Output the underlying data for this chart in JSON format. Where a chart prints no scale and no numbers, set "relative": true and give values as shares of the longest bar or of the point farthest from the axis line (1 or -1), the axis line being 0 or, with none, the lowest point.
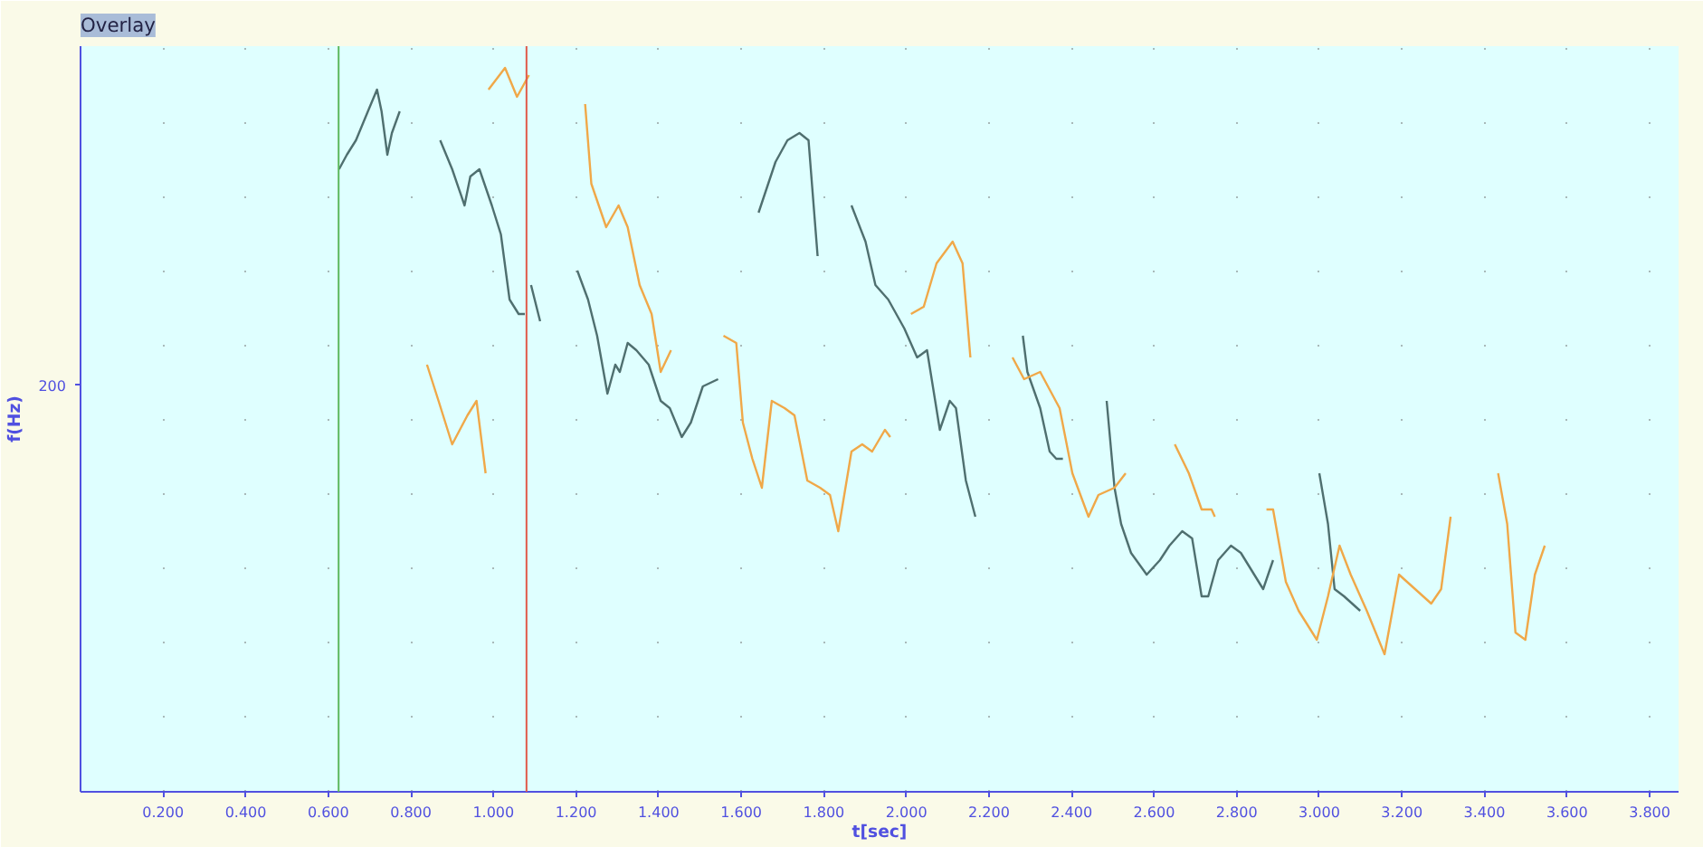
{
  "chart_data": {
    "type": "line",
    "title": "Overlay",
    "xlabel": "t[sec]",
    "ylabel": "f(Hz)",
    "relative": true,
    "xlim": [
      0,
      3.87
    ],
    "xticks": [
      {
        "value": 0.2,
        "label": "0.200"
      },
      {
        "value": 0.4,
        "label": "0.400"
      },
      {
        "value": 0.6,
        "label": "0.600"
      },
      {
        "value": 0.8,
        "label": "0.800"
      },
      {
        "value": 1.0,
        "label": "1.000"
      },
      {
        "value": 1.2,
        "label": "1.200"
      },
      {
        "value": 1.4,
        "label": "1.400"
      },
      {
        "value": 1.6,
        "label": "1.600"
      },
      {
        "value": 1.8,
        "label": "1.800"
      },
      {
        "value": 2.0,
        "label": "2.000"
      },
      {
        "value": 2.2,
        "label": "2.200"
      },
      {
        "value": 2.4,
        "label": "2.400"
      },
      {
        "value": 2.6,
        "label": "2.600"
      },
      {
        "value": 2.8,
        "label": "2.800"
      },
      {
        "value": 3.0,
        "label": "3.000"
      },
      {
        "value": 3.2,
        "label": "3.200"
      },
      {
        "value": 3.4,
        "label": "3.400"
      },
      {
        "value": 3.6,
        "label": "3.600"
      },
      {
        "value": 3.8,
        "label": "3.800"
      }
    ],
    "annotations": [
      "200"
    ],
    "grid": "x",
    "marker": "none",
    "line_style": "solid",
    "ref_lines": [
      {
        "axis": "x",
        "value": 0.625,
        "color": "#5cb85c"
      },
      {
        "axis": "x",
        "value": 1.08,
        "color": "#e05a4a"
      }
    ],
    "series": [
      {
        "color": "#4f6f6f",
        "x": [
          0.626,
          0.645,
          0.667,
          0.696,
          0.718,
          0.729,
          0.743,
          0.754,
          0.773,
          0.78,
          0.871,
          0.9,
          0.93,
          0.944,
          0.966,
          0.996,
          1.018,
          1.039,
          1.061,
          1.076,
          1.083,
          1.091,
          1.113,
          1.15,
          1.203,
          1.229,
          1.251,
          1.276,
          1.295,
          1.306,
          1.325,
          1.346,
          1.376,
          1.405,
          1.427,
          1.456,
          1.478,
          1.507,
          1.544,
          1.6,
          1.642,
          1.683,
          1.712,
          1.741,
          1.763,
          1.785,
          1.82,
          1.867,
          1.901,
          1.925,
          1.956,
          1.995,
          2.026,
          2.05,
          2.081,
          2.105,
          2.12,
          2.144,
          2.167,
          2.2,
          2.282,
          2.293,
          2.324,
          2.347,
          2.363,
          2.379,
          2.43,
          2.485,
          2.504,
          2.52,
          2.544,
          2.582,
          2.614,
          2.637,
          2.668,
          2.692,
          2.715,
          2.731,
          2.755,
          2.786,
          2.81,
          2.864,
          2.888,
          2.95,
          3.0,
          3.021,
          3.037,
          3.06,
          3.099
        ],
        "values": [
          0.86,
          0.88,
          0.9,
          0.94,
          0.97,
          0.94,
          0.88,
          0.91,
          0.94,
          null,
          0.9,
          0.86,
          0.81,
          0.85,
          0.86,
          0.81,
          0.77,
          0.68,
          0.66,
          0.66,
          null,
          0.7,
          0.65,
          null,
          0.72,
          0.68,
          0.63,
          0.55,
          0.59,
          0.58,
          0.62,
          0.61,
          0.59,
          0.54,
          0.53,
          0.49,
          0.51,
          0.56,
          0.57,
          null,
          0.8,
          0.87,
          0.9,
          0.91,
          0.9,
          0.74,
          null,
          0.81,
          0.76,
          0.7,
          0.68,
          0.64,
          0.6,
          0.61,
          0.5,
          0.54,
          0.53,
          0.43,
          0.38,
          null,
          0.63,
          0.58,
          0.53,
          0.47,
          0.46,
          0.46,
          null,
          0.54,
          0.42,
          0.37,
          0.33,
          0.3,
          0.32,
          0.34,
          0.36,
          0.35,
          0.27,
          0.27,
          0.32,
          0.34,
          0.33,
          0.28,
          0.32,
          null,
          0.44,
          0.37,
          0.28,
          0.27,
          0.25
        ]
      },
      {
        "color": "#f0a848",
        "x": [
          0.839,
          0.867,
          0.9,
          0.937,
          0.959,
          0.981,
          0.985,
          0.988,
          1.028,
          1.057,
          1.086,
          1.15,
          1.222,
          1.237,
          1.273,
          1.303,
          1.325,
          1.354,
          1.383,
          1.405,
          1.43,
          1.5,
          1.557,
          1.588,
          1.604,
          1.627,
          1.65,
          1.674,
          1.705,
          1.729,
          1.76,
          1.791,
          1.815,
          1.835,
          1.867,
          1.893,
          1.917,
          1.948,
          1.961,
          1.99,
          2.011,
          2.042,
          2.073,
          2.112,
          2.136,
          2.155,
          2.2,
          2.257,
          2.285,
          2.324,
          2.371,
          2.402,
          2.441,
          2.465,
          2.504,
          2.531,
          2.6,
          2.65,
          2.684,
          2.715,
          2.739,
          2.747,
          2.8,
          2.872,
          2.888,
          2.919,
          2.95,
          2.994,
          3.021,
          3.049,
          3.076,
          3.115,
          3.158,
          3.193,
          3.232,
          3.271,
          3.295,
          3.318,
          3.38,
          3.433,
          3.455,
          3.475,
          3.499,
          3.522,
          3.546
        ],
        "values": [
          0.59,
          0.54,
          0.48,
          0.52,
          0.54,
          0.44,
          null,
          0.97,
          1.0,
          0.96,
          0.99,
          null,
          0.95,
          0.84,
          0.78,
          0.81,
          0.78,
          0.7,
          0.66,
          0.58,
          0.61,
          null,
          0.63,
          0.62,
          0.51,
          0.46,
          0.42,
          0.54,
          0.53,
          0.52,
          0.43,
          0.42,
          0.41,
          0.36,
          0.47,
          0.48,
          0.47,
          0.5,
          0.49,
          null,
          0.66,
          0.67,
          0.73,
          0.76,
          0.73,
          0.6,
          null,
          0.6,
          0.57,
          0.58,
          0.53,
          0.44,
          0.38,
          0.41,
          0.42,
          0.44,
          null,
          0.48,
          0.44,
          0.39,
          0.39,
          0.38,
          null,
          0.39,
          0.39,
          0.29,
          0.25,
          0.21,
          0.27,
          0.34,
          0.3,
          0.25,
          0.19,
          0.3,
          0.28,
          0.26,
          0.28,
          0.38,
          null,
          0.44,
          0.37,
          0.22,
          0.21,
          0.3,
          0.34
        ]
      }
    ]
  }
}
